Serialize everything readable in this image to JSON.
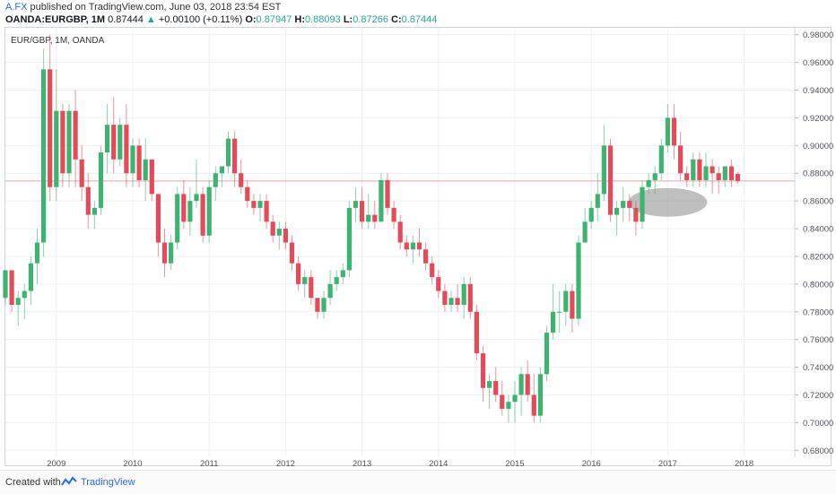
{
  "header": {
    "user": "A.FX",
    "published": "published on TradingView.com, June 03, 2018 23:54 EST",
    "symbol": "OANDA:EURGBP, 1M",
    "last": "0.87444",
    "change": "+0.00100 (+0.11%)",
    "o_label": "O:",
    "o_val": "0.87947",
    "h_label": "H:",
    "h_val": "0.88093",
    "l_label": "L:",
    "l_val": "0.87266",
    "c_label": "C:",
    "c_val": "0.87444"
  },
  "chart_title": "EUR/GBP, 1M, OANDA",
  "footer": {
    "created_with": "Created with",
    "brand": "TradingView"
  },
  "colors": {
    "up": "#3cb371",
    "down": "#e34a5a",
    "grid": "#eef0f3",
    "price_line": "#f1a2aa",
    "ellipse": "#8a8a8a"
  },
  "chart_data": {
    "type": "candlestick",
    "interval": "1M",
    "ylim": [
      0.675,
      0.985
    ],
    "y_ticks": [
      "0.68000",
      "0.70000",
      "0.72000",
      "0.74000",
      "0.76000",
      "0.78000",
      "0.80000",
      "0.82000",
      "0.84000",
      "0.86000",
      "0.88000",
      "0.90000",
      "0.92000",
      "0.94000",
      "0.96000",
      "0.98000"
    ],
    "x_ticks": [
      "2009",
      "2010",
      "2011",
      "2012",
      "2013",
      "2014",
      "2015",
      "2016",
      "2017",
      "2018"
    ],
    "start_month": "2008-05",
    "current_price": 0.87444,
    "highlight": {
      "center_month": "2017-01",
      "center_price": 0.859,
      "note": "gray ellipse"
    },
    "ohlc": [
      [
        0.79,
        0.81,
        0.785,
        0.81
      ],
      [
        0.81,
        0.81,
        0.78,
        0.785
      ],
      [
        0.785,
        0.795,
        0.77,
        0.79
      ],
      [
        0.79,
        0.8,
        0.775,
        0.795
      ],
      [
        0.795,
        0.82,
        0.785,
        0.815
      ],
      [
        0.815,
        0.84,
        0.8,
        0.83
      ],
      [
        0.83,
        0.97,
        0.82,
        0.955
      ],
      [
        0.955,
        0.98,
        0.86,
        0.87
      ],
      [
        0.87,
        0.955,
        0.86,
        0.925
      ],
      [
        0.925,
        0.93,
        0.87,
        0.88
      ],
      [
        0.88,
        0.93,
        0.87,
        0.925
      ],
      [
        0.925,
        0.94,
        0.87,
        0.89
      ],
      [
        0.89,
        0.9,
        0.86,
        0.87
      ],
      [
        0.87,
        0.88,
        0.84,
        0.85
      ],
      [
        0.85,
        0.86,
        0.84,
        0.855
      ],
      [
        0.855,
        0.9,
        0.85,
        0.895
      ],
      [
        0.895,
        0.93,
        0.88,
        0.915
      ],
      [
        0.915,
        0.935,
        0.88,
        0.89
      ],
      [
        0.89,
        0.92,
        0.885,
        0.915
      ],
      [
        0.915,
        0.93,
        0.87,
        0.88
      ],
      [
        0.88,
        0.905,
        0.87,
        0.9
      ],
      [
        0.9,
        0.905,
        0.87,
        0.875
      ],
      [
        0.875,
        0.905,
        0.86,
        0.89
      ],
      [
        0.89,
        0.89,
        0.86,
        0.865
      ],
      [
        0.865,
        0.865,
        0.82,
        0.83
      ],
      [
        0.83,
        0.84,
        0.805,
        0.815
      ],
      [
        0.815,
        0.835,
        0.81,
        0.83
      ],
      [
        0.83,
        0.87,
        0.825,
        0.865
      ],
      [
        0.865,
        0.875,
        0.84,
        0.845
      ],
      [
        0.845,
        0.87,
        0.835,
        0.86
      ],
      [
        0.86,
        0.89,
        0.855,
        0.865
      ],
      [
        0.865,
        0.87,
        0.83,
        0.835
      ],
      [
        0.835,
        0.875,
        0.83,
        0.87
      ],
      [
        0.87,
        0.885,
        0.86,
        0.88
      ],
      [
        0.88,
        0.885,
        0.87,
        0.885
      ],
      [
        0.885,
        0.91,
        0.88,
        0.905
      ],
      [
        0.905,
        0.91,
        0.87,
        0.88
      ],
      [
        0.88,
        0.89,
        0.865,
        0.87
      ],
      [
        0.87,
        0.875,
        0.855,
        0.86
      ],
      [
        0.86,
        0.865,
        0.85,
        0.855
      ],
      [
        0.855,
        0.865,
        0.845,
        0.86
      ],
      [
        0.86,
        0.865,
        0.84,
        0.845
      ],
      [
        0.845,
        0.85,
        0.83,
        0.835
      ],
      [
        0.835,
        0.845,
        0.825,
        0.84
      ],
      [
        0.84,
        0.845,
        0.825,
        0.83
      ],
      [
        0.83,
        0.835,
        0.81,
        0.815
      ],
      [
        0.815,
        0.82,
        0.795,
        0.8
      ],
      [
        0.8,
        0.81,
        0.79,
        0.805
      ],
      [
        0.805,
        0.81,
        0.785,
        0.79
      ],
      [
        0.79,
        0.79,
        0.775,
        0.78
      ],
      [
        0.78,
        0.795,
        0.775,
        0.79
      ],
      [
        0.79,
        0.81,
        0.785,
        0.8
      ],
      [
        0.8,
        0.81,
        0.795,
        0.805
      ],
      [
        0.805,
        0.815,
        0.8,
        0.81
      ],
      [
        0.81,
        0.86,
        0.805,
        0.855
      ],
      [
        0.855,
        0.87,
        0.845,
        0.86
      ],
      [
        0.86,
        0.87,
        0.84,
        0.845
      ],
      [
        0.845,
        0.865,
        0.84,
        0.85
      ],
      [
        0.85,
        0.86,
        0.84,
        0.845
      ],
      [
        0.845,
        0.88,
        0.845,
        0.875
      ],
      [
        0.875,
        0.88,
        0.85,
        0.855
      ],
      [
        0.855,
        0.86,
        0.84,
        0.845
      ],
      [
        0.845,
        0.85,
        0.825,
        0.83
      ],
      [
        0.83,
        0.835,
        0.82,
        0.825
      ],
      [
        0.825,
        0.835,
        0.815,
        0.83
      ],
      [
        0.83,
        0.84,
        0.82,
        0.825
      ],
      [
        0.825,
        0.83,
        0.81,
        0.815
      ],
      [
        0.815,
        0.82,
        0.8,
        0.805
      ],
      [
        0.805,
        0.81,
        0.79,
        0.795
      ],
      [
        0.795,
        0.8,
        0.78,
        0.785
      ],
      [
        0.785,
        0.795,
        0.78,
        0.79
      ],
      [
        0.79,
        0.8,
        0.78,
        0.785
      ],
      [
        0.785,
        0.805,
        0.775,
        0.8
      ],
      [
        0.8,
        0.805,
        0.775,
        0.78
      ],
      [
        0.78,
        0.785,
        0.745,
        0.75
      ],
      [
        0.75,
        0.755,
        0.715,
        0.725
      ],
      [
        0.725,
        0.735,
        0.71,
        0.73
      ],
      [
        0.73,
        0.74,
        0.715,
        0.72
      ],
      [
        0.72,
        0.73,
        0.705,
        0.71
      ],
      [
        0.71,
        0.72,
        0.7,
        0.715
      ],
      [
        0.715,
        0.73,
        0.7,
        0.72
      ],
      [
        0.72,
        0.74,
        0.705,
        0.735
      ],
      [
        0.735,
        0.745,
        0.715,
        0.72
      ],
      [
        0.72,
        0.735,
        0.7,
        0.705
      ],
      [
        0.705,
        0.74,
        0.7,
        0.735
      ],
      [
        0.735,
        0.77,
        0.73,
        0.765
      ],
      [
        0.765,
        0.8,
        0.76,
        0.78
      ],
      [
        0.78,
        0.795,
        0.765,
        0.78
      ],
      [
        0.78,
        0.8,
        0.77,
        0.795
      ],
      [
        0.795,
        0.8,
        0.765,
        0.775
      ],
      [
        0.775,
        0.835,
        0.77,
        0.83
      ],
      [
        0.83,
        0.855,
        0.83,
        0.845
      ],
      [
        0.845,
        0.86,
        0.84,
        0.855
      ],
      [
        0.855,
        0.88,
        0.845,
        0.865
      ],
      [
        0.865,
        0.915,
        0.86,
        0.9
      ],
      [
        0.9,
        0.905,
        0.845,
        0.85
      ],
      [
        0.85,
        0.86,
        0.835,
        0.855
      ],
      [
        0.855,
        0.87,
        0.845,
        0.86
      ],
      [
        0.86,
        0.865,
        0.845,
        0.855
      ],
      [
        0.855,
        0.86,
        0.835,
        0.845
      ],
      [
        0.845,
        0.875,
        0.84,
        0.87
      ],
      [
        0.87,
        0.88,
        0.865,
        0.875
      ],
      [
        0.875,
        0.885,
        0.865,
        0.88
      ],
      [
        0.88,
        0.905,
        0.875,
        0.9
      ],
      [
        0.9,
        0.93,
        0.895,
        0.92
      ],
      [
        0.92,
        0.93,
        0.89,
        0.9
      ],
      [
        0.9,
        0.91,
        0.875,
        0.88
      ],
      [
        0.88,
        0.885,
        0.87,
        0.875
      ],
      [
        0.875,
        0.895,
        0.87,
        0.89
      ],
      [
        0.89,
        0.895,
        0.87,
        0.875
      ],
      [
        0.875,
        0.895,
        0.87,
        0.885
      ],
      [
        0.885,
        0.89,
        0.865,
        0.88
      ],
      [
        0.88,
        0.885,
        0.865,
        0.875
      ],
      [
        0.875,
        0.885,
        0.87,
        0.885
      ],
      [
        0.885,
        0.89,
        0.87,
        0.875
      ],
      [
        0.87947,
        0.88093,
        0.87266,
        0.87444
      ]
    ]
  }
}
